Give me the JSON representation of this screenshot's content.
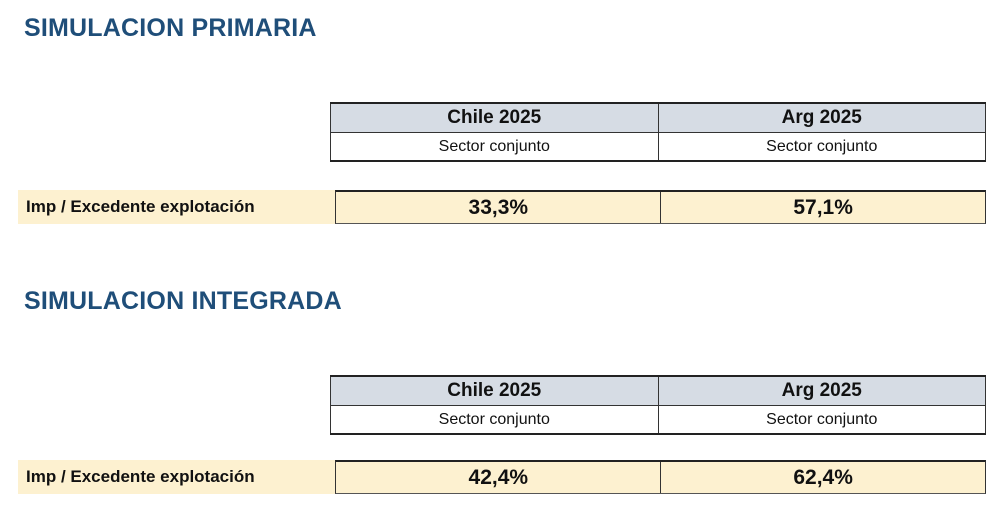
{
  "sections": [
    {
      "title": "SIMULACION PRIMARIA",
      "columns": [
        {
          "country": "Chile 2025",
          "sector": "Sector conjunto"
        },
        {
          "country": "Arg 2025",
          "sector": "Sector conjunto"
        }
      ],
      "row_label": "Imp / Excedente explotación",
      "values": [
        "33,3%",
        "57,1%"
      ]
    },
    {
      "title": "SIMULACION INTEGRADA",
      "columns": [
        {
          "country": "Chile 2025",
          "sector": "Sector conjunto"
        },
        {
          "country": "Arg 2025",
          "sector": "Sector conjunto"
        }
      ],
      "row_label": "Imp / Excedente explotación",
      "values": [
        "42,4%",
        "62,4%"
      ]
    }
  ],
  "colors": {
    "title": "#1f4e79",
    "header_fill": "#d6dce4",
    "value_fill": "#fdf1d0"
  }
}
